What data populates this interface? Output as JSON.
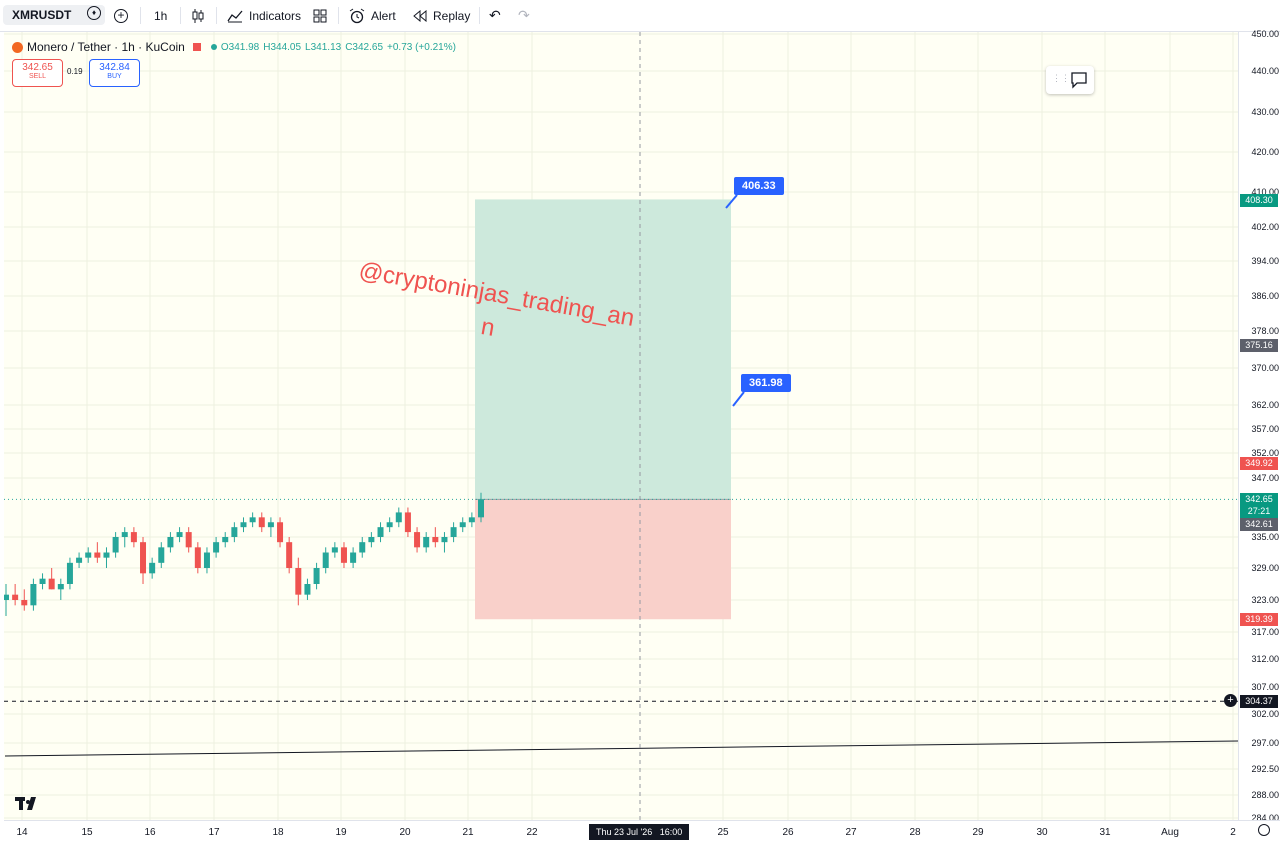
{
  "toolbar": {
    "symbol": "XMRUSDT",
    "interval": "1h",
    "indicators": "Indicators",
    "alert": "Alert",
    "replay": "Replay"
  },
  "legend": {
    "title": "Monero / Tether · 1h · KuCoin",
    "open": "O341.98",
    "high": "H344.05",
    "low": "L341.13",
    "close": "C342.65",
    "change": "+0.73 (+0.21%)"
  },
  "trade": {
    "sell_price": "342.65",
    "sell_label": "SELL",
    "spread": "0.19",
    "buy_price": "342.84",
    "buy_label": "BUY"
  },
  "watermark": {
    "line1": "@cryptoninjas_trading_an",
    "line2": "n"
  },
  "callouts": {
    "target1": "406.33",
    "target2": "361.98"
  },
  "price_scale": {
    "labels": [
      "450.00",
      "440.00",
      "430.00",
      "420.00",
      "410.00",
      "402.00",
      "394.00",
      "386.00",
      "378.00",
      "370.00",
      "362.00",
      "357.00",
      "352.00",
      "347.00",
      "335.00",
      "329.00",
      "323.00",
      "317.00",
      "312.00",
      "307.00",
      "302.00",
      "297.00",
      "292.50",
      "288.00",
      "284.00"
    ],
    "badges": {
      "tp": "408.30",
      "mid": "375.16",
      "entry_stop": "349.92",
      "last": "342.65",
      "countdown": "27:21",
      "prev": "342.61",
      "sl": "319.39",
      "hline": "304.37"
    }
  },
  "time_scale": {
    "labels": [
      "14",
      "15",
      "16",
      "17",
      "18",
      "19",
      "20",
      "21",
      "22",
      "25",
      "26",
      "27",
      "28",
      "29",
      "30",
      "31",
      "Aug",
      "2"
    ],
    "crosshair": "Thu 23 Jul '26   16:00"
  },
  "colors": {
    "up": "#26a69a",
    "down": "#ef5350",
    "profit_zone": "#cde9dc",
    "loss_zone": "#f9d0ca",
    "accent": "#2962ff"
  },
  "chart_data": {
    "type": "candlestick",
    "title": "Monero / Tether · 1h · KuCoin",
    "ylim": [
      284,
      450
    ],
    "position": {
      "entry": 342.65,
      "target": 408.3,
      "stop": 319.39
    },
    "horizontal_line": 304.37,
    "candles": [
      [
        0,
        323,
        326,
        320,
        324
      ],
      [
        1,
        324,
        326,
        322,
        323
      ],
      [
        2,
        323,
        325,
        321,
        322
      ],
      [
        3,
        322,
        327,
        321,
        326
      ],
      [
        4,
        326,
        328,
        325,
        327
      ],
      [
        5,
        327,
        329,
        325,
        325
      ],
      [
        6,
        325,
        327,
        323,
        326
      ],
      [
        7,
        326,
        331,
        325,
        330
      ],
      [
        8,
        330,
        332,
        329,
        331
      ],
      [
        9,
        331,
        333,
        330,
        332
      ],
      [
        10,
        332,
        334,
        330,
        331
      ],
      [
        11,
        331,
        333,
        329,
        332
      ],
      [
        12,
        332,
        336,
        331,
        335
      ],
      [
        13,
        335,
        337,
        333,
        336
      ],
      [
        14,
        336,
        337,
        333,
        334
      ],
      [
        15,
        334,
        335,
        326,
        328
      ],
      [
        16,
        328,
        331,
        327,
        330
      ],
      [
        17,
        330,
        334,
        329,
        333
      ],
      [
        18,
        333,
        336,
        332,
        335
      ],
      [
        19,
        335,
        337,
        334,
        336
      ],
      [
        20,
        336,
        337,
        332,
        333
      ],
      [
        21,
        333,
        334,
        328,
        329
      ],
      [
        22,
        329,
        333,
        328,
        332
      ],
      [
        23,
        332,
        335,
        331,
        334
      ],
      [
        24,
        334,
        336,
        333,
        335
      ],
      [
        25,
        335,
        338,
        334,
        337
      ],
      [
        26,
        337,
        339,
        336,
        338
      ],
      [
        27,
        338,
        340,
        337,
        339
      ],
      [
        28,
        339,
        340,
        336,
        337
      ],
      [
        29,
        337,
        339,
        335,
        338
      ],
      [
        30,
        338,
        339,
        333,
        334
      ],
      [
        31,
        334,
        335,
        328,
        329
      ],
      [
        32,
        329,
        331,
        322,
        324
      ],
      [
        33,
        324,
        327,
        323,
        326
      ],
      [
        34,
        326,
        330,
        325,
        329
      ],
      [
        35,
        329,
        333,
        328,
        332
      ],
      [
        36,
        332,
        334,
        331,
        333
      ],
      [
        37,
        333,
        334,
        329,
        330
      ],
      [
        38,
        330,
        333,
        329,
        332
      ],
      [
        39,
        332,
        335,
        331,
        334
      ],
      [
        40,
        334,
        336,
        333,
        335
      ],
      [
        41,
        335,
        338,
        334,
        337
      ],
      [
        42,
        337,
        339,
        336,
        338
      ],
      [
        43,
        338,
        341,
        337,
        340
      ],
      [
        44,
        340,
        341,
        335,
        336
      ],
      [
        45,
        336,
        337,
        332,
        333
      ],
      [
        46,
        333,
        336,
        332,
        335
      ],
      [
        47,
        335,
        337,
        333,
        334
      ],
      [
        48,
        334,
        336,
        332,
        335
      ],
      [
        49,
        335,
        338,
        334,
        337
      ],
      [
        50,
        337,
        339,
        336,
        338
      ],
      [
        51,
        338,
        340,
        337,
        339
      ],
      [
        52,
        339,
        344,
        338,
        342.65
      ]
    ]
  }
}
